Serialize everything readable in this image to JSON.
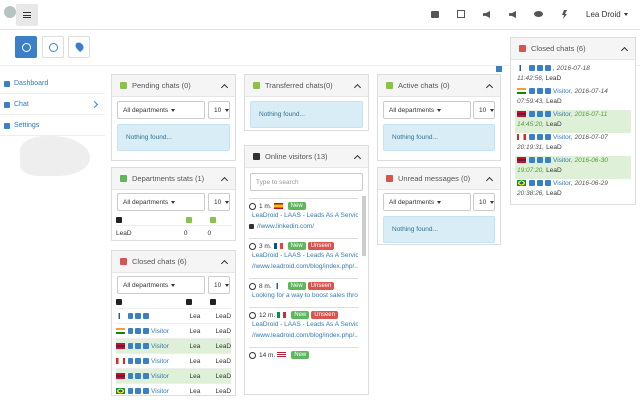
{
  "header": {
    "user": "Lea Droid"
  },
  "sidebar": {
    "items": [
      "Dashboard",
      "Chat",
      "Settings"
    ]
  },
  "panels": {
    "pending": {
      "title": "Pending chats (0)",
      "department": "All departments",
      "limit": "10",
      "empty": "Nothing found..."
    },
    "transferred": {
      "title": "Transferred chats(0)",
      "empty": "Nothing found..."
    },
    "active": {
      "title": "Active chats (0)",
      "department": "All departments",
      "limit": "10",
      "empty": "Nothing found..."
    },
    "departments": {
      "title": "Departments stats (1)",
      "department": "All departments",
      "limit": "10",
      "rows": [
        [
          "LeaD",
          "0",
          "0"
        ]
      ]
    },
    "unread": {
      "title": "Unread messages (0)",
      "department": "All departments",
      "limit": "10",
      "empty": "Nothing found..."
    },
    "online": {
      "title": "Online visitors (13)",
      "search_placeholder": "Type to search",
      "visitors": [
        {
          "time": "1 m.",
          "badges": [
            "New"
          ],
          "lines": [
            "LeaDroid - LAAS - Leads As A Service",
            "//www.linkedin.com/"
          ]
        },
        {
          "time": "3 m.",
          "badges": [
            "New",
            "Unseen"
          ],
          "lines": [
            "LeaDroid - LAAS - Leads As A Service",
            "//www.leadroid.com/blog/index.php/..."
          ]
        },
        {
          "time": "8 m.",
          "badges": [
            "New",
            "Unseen"
          ],
          "lines": [
            "Looking for a way to boost sales thro..."
          ]
        },
        {
          "time": "12 m.",
          "badges": [
            "New",
            "Unseen"
          ],
          "lines": [
            "LeaDroid - LAAS - Leads As A Service",
            "//www.leadroid.com/blog/index.php/..."
          ]
        },
        {
          "time": "14 m.",
          "badges": [
            "New"
          ],
          "lines": []
        }
      ]
    },
    "closed": {
      "title": "Closed chats (6)",
      "department": "All departments",
      "limit": "10",
      "rows": [
        {
          "visitor": null,
          "owner": "Lea",
          "dept": "LeaD"
        },
        {
          "visitor": "Visitor",
          "owner": "Lea",
          "dept": "LeaD"
        },
        {
          "visitor": "Visitor",
          "owner": "Lea",
          "dept": "LeaD"
        },
        {
          "visitor": "Visitor",
          "owner": "Lea",
          "dept": "LeaD"
        },
        {
          "visitor": "Visitor",
          "owner": "Lea",
          "dept": "LeaD"
        },
        {
          "visitor": "Visitor",
          "owner": "Lea",
          "dept": "LeaD"
        }
      ]
    },
    "closed_right": {
      "title": "Closed chats (6)",
      "rows": [
        {
          "visitor": null,
          "date": ", 2016-07-18",
          "time": "11:42:56,",
          "dept": "LeaD"
        },
        {
          "visitor": "Visitor",
          "date": ", 2016-07-14",
          "time": "07:59:43,",
          "dept": "LeaD"
        },
        {
          "visitor": "Visitor",
          "date": ", 2016-07-11",
          "time": "14:45:20,",
          "dept": "LeaD"
        },
        {
          "visitor": "Visitor",
          "date": ", 2016-07-07",
          "time": "20:19:31,",
          "dept": "LeaD"
        },
        {
          "visitor": "Visitor",
          "date": ", 2016-06-30",
          "time": "19:07:20,",
          "dept": "LeaD"
        },
        {
          "visitor": "Visitor",
          "date": ", 2016-06-29",
          "time": "20:38:26,",
          "dept": "LeaD"
        }
      ]
    }
  }
}
